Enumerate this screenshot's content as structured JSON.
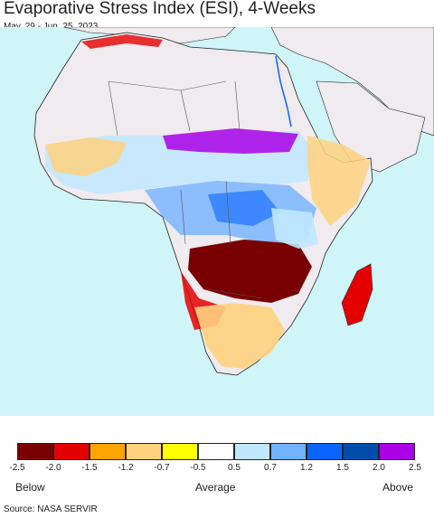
{
  "title": "Evaporative Stress Index (ESI), 4-Weeks",
  "subtitle": "May. 29 - Jun. 25, 2023",
  "legend": {
    "colors": [
      "#780000",
      "#e50000",
      "#ffa500",
      "#ffd27f",
      "#ffff00",
      "#ffffff",
      "#bfe8ff",
      "#73b2ff",
      "#0a64ff",
      "#004dab",
      "#a900e6"
    ],
    "ticks": [
      "-2.5",
      "-2.0",
      "-1.5",
      "-1.2",
      "-0.7",
      "-0.5",
      "0.5",
      "0.7",
      "1.2",
      "1.5",
      "2.0",
      "2.5"
    ],
    "below": "Below",
    "average": "Average",
    "above": "Above"
  },
  "source": "Source: NASA SERVIR",
  "map_colors": {
    "ocean": "#cff5f8",
    "land_nodata": "#efebef",
    "border": "#222222"
  }
}
